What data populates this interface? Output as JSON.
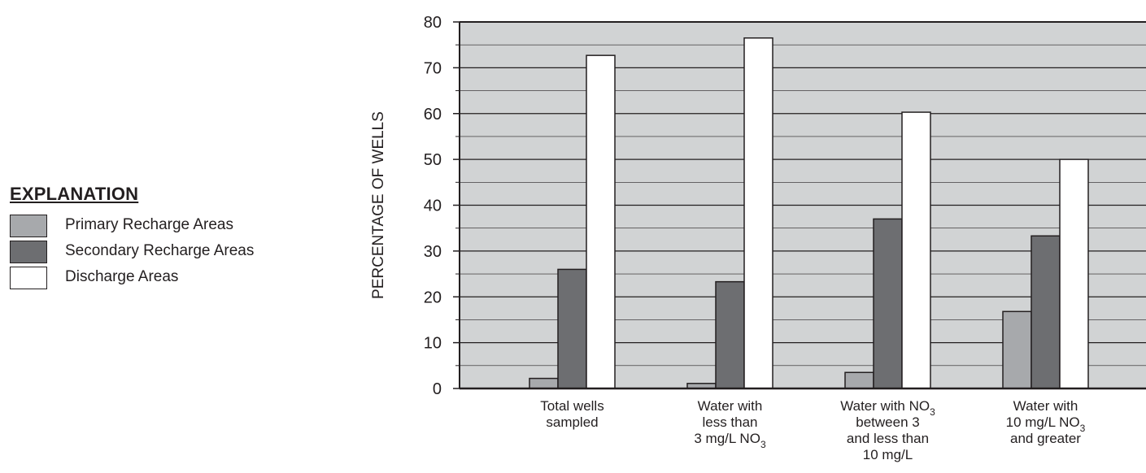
{
  "legend": {
    "title": "EXPLANATION",
    "items": [
      {
        "label": "Primary Recharge Areas",
        "color": "#a7a9ac"
      },
      {
        "label": "Secondary Recharge Areas",
        "color": "#6d6e71"
      },
      {
        "label": "Discharge Areas",
        "color": "#ffffff"
      }
    ]
  },
  "chart_data": {
    "type": "bar",
    "title": "",
    "xlabel": "",
    "ylabel": "PERCENTAGE OF WELLS",
    "ylim": [
      0,
      80
    ],
    "yticks": [
      0,
      10,
      20,
      30,
      40,
      50,
      60,
      70,
      80
    ],
    "grid": true,
    "plot_background": "#d1d3d4",
    "legend_position": "left",
    "categories": [
      [
        {
          "t": "Total wells"
        },
        {
          "t": "sampled"
        }
      ],
      [
        {
          "t": "Water with"
        },
        {
          "t": "less than"
        },
        {
          "t": "3 mg/L NO",
          "sub": "3"
        }
      ],
      [
        {
          "t": "Water with NO",
          "sub": "3"
        },
        {
          "t": "between 3"
        },
        {
          "t": "and less than"
        },
        {
          "t": "10 mg/L"
        }
      ],
      [
        {
          "t": "Water with"
        },
        {
          "t": "10 mg/L NO",
          "sub": "3"
        },
        {
          "t": "and greater"
        }
      ]
    ],
    "series": [
      {
        "name": "Primary Recharge Areas",
        "color": "#a7a9ac",
        "values": [
          2.2,
          1.1,
          3.5,
          16.8
        ]
      },
      {
        "name": "Secondary Recharge Areas",
        "color": "#6d6e71",
        "values": [
          26.0,
          23.3,
          37.0,
          33.3
        ]
      },
      {
        "name": "Discharge Areas",
        "color": "#ffffff",
        "values": [
          72.7,
          76.5,
          60.3,
          50.0
        ]
      }
    ]
  }
}
